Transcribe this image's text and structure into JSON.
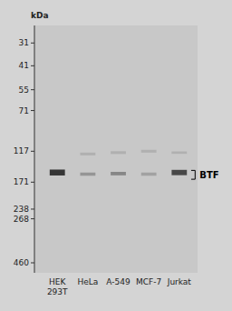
{
  "chart_data": {
    "type": "blot",
    "y_label": "kDa",
    "categories": [
      "HEK\n293T",
      "HeLa",
      "A-549",
      "MCF-7",
      "Jurkat"
    ],
    "log": "y",
    "ylim": [
      520,
      25
    ],
    "yticks": [
      460,
      268,
      238,
      171,
      117,
      71,
      55,
      41,
      31
    ],
    "series": [
      {
        "low": [
          146.5,
          151.975,
          150.7,
          151.975,
          147.05
        ],
        "high": [
          157.5,
          158.025,
          157.3,
          158.025,
          156.95
        ],
        "colors": [
          "#111111",
          "#888888",
          "#777777",
          "#999999",
          "#282828"
        ]
      },
      {
        "low": [
          null,
          119,
          117,
          115,
          117.25
        ],
        "high": [
          null,
          123,
          121,
          119,
          120.75
        ],
        "colors": [
          null,
          "#aaaaaa",
          "#aaaaaa",
          "#aaaaaa",
          "#aaaaaa"
        ]
      }
    ],
    "annotations": [
      {
        "text": "BTF",
        "y": [
          148,
          165
        ]
      }
    ]
  }
}
